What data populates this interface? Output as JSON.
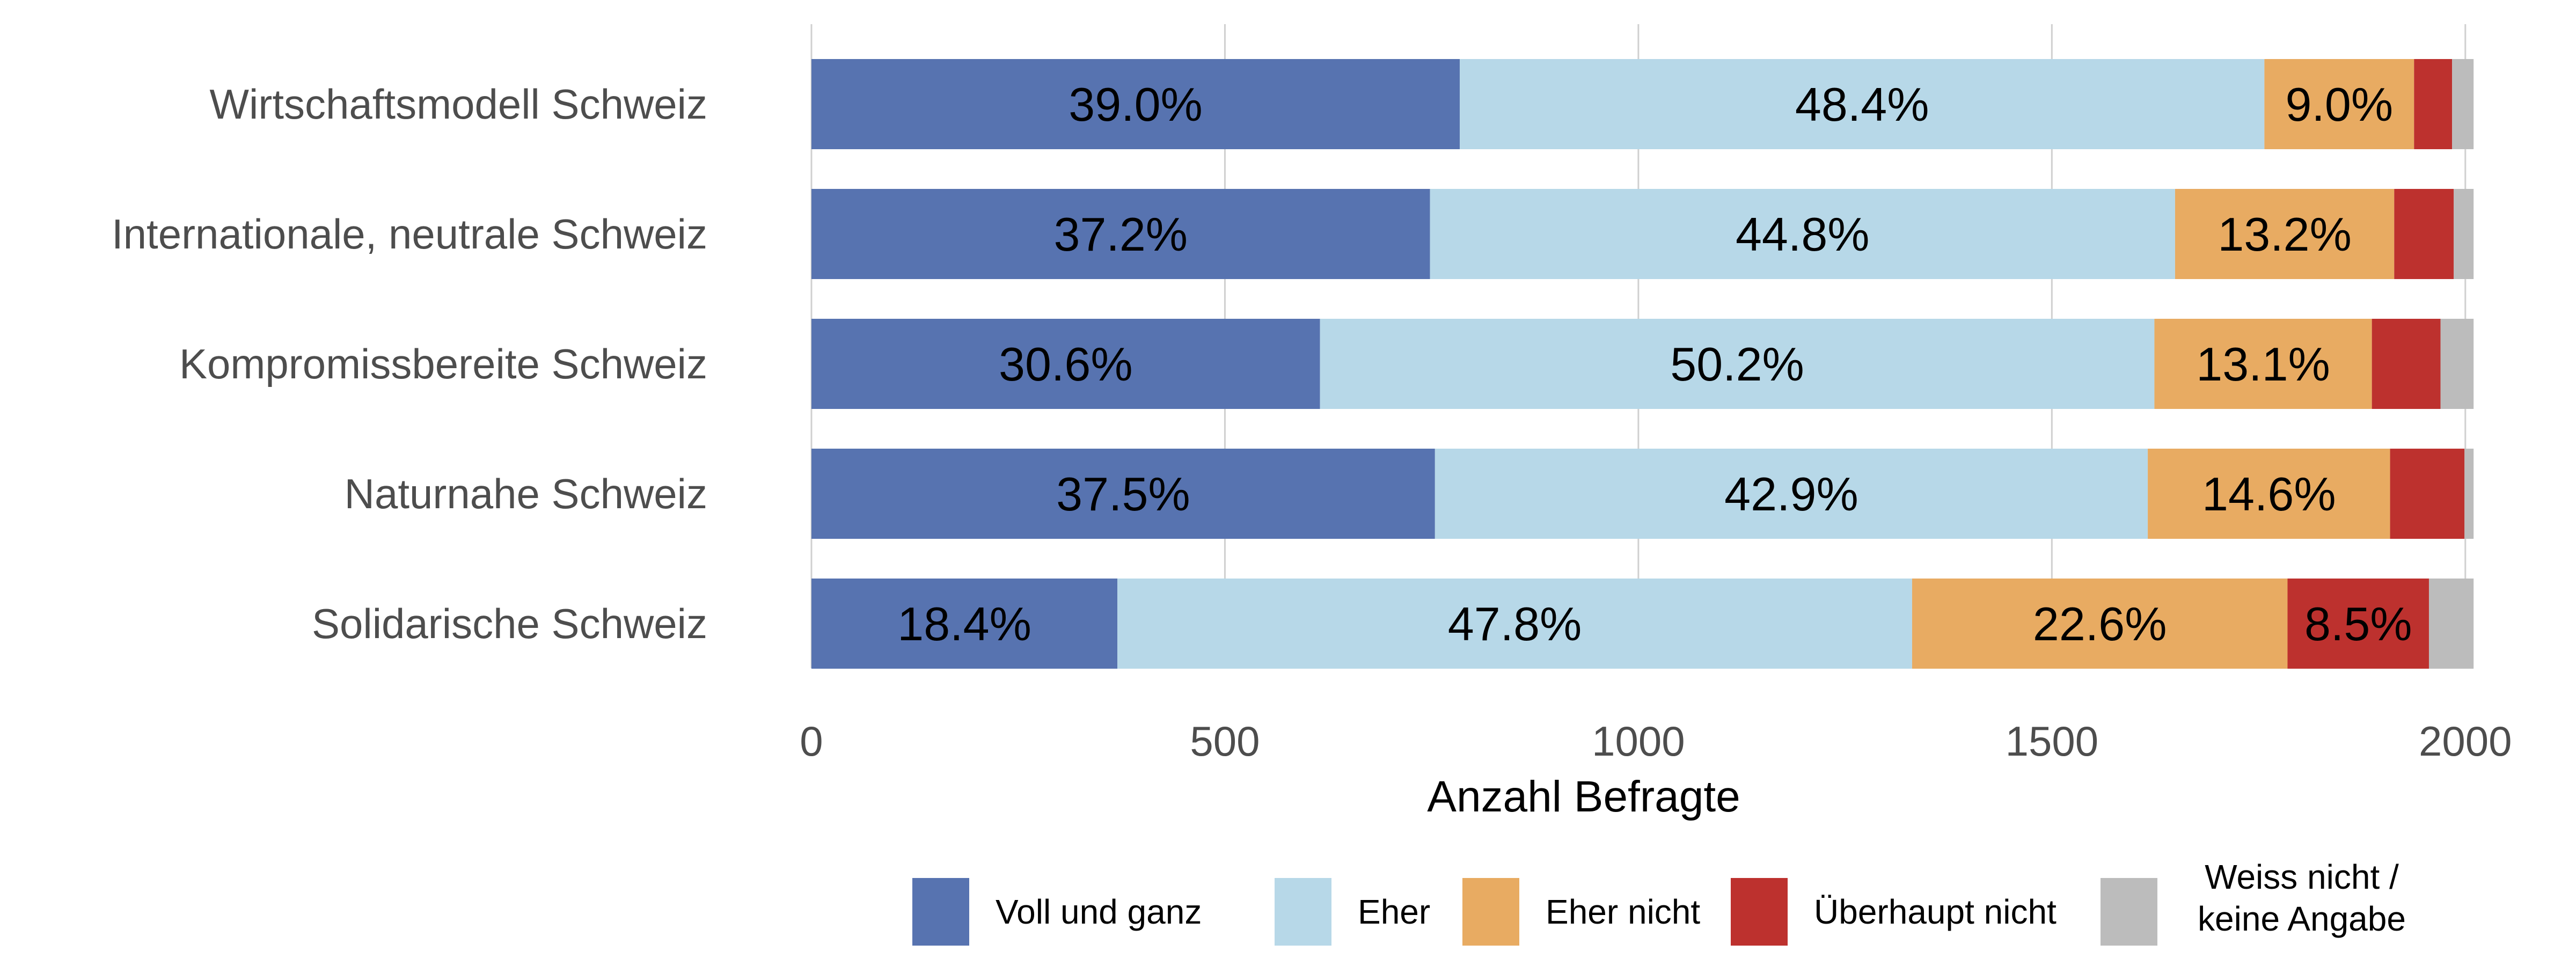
{
  "chart_data": {
    "type": "bar",
    "orientation": "horizontal",
    "stacked": true,
    "categories": [
      "Wirtschaftsmodell Schweiz",
      "Internationale, neutrale Schweiz",
      "Kompromissbereite Schweiz",
      "Naturnahe Schweiz",
      "Solidarische Schweiz"
    ],
    "series": [
      {
        "name": "Voll und ganz",
        "color": "#5773b0",
        "values": [
          784,
          748,
          615,
          754,
          370
        ],
        "labels": [
          "39.0%",
          "37.2%",
          "30.6%",
          "37.5%",
          "18.4%"
        ]
      },
      {
        "name": "Eher",
        "color": "#b7d8e8",
        "values": [
          973,
          901,
          1009,
          862,
          961
        ],
        "labels": [
          "48.4%",
          "44.8%",
          "50.2%",
          "42.9%",
          "47.8%"
        ]
      },
      {
        "name": "Eher nicht",
        "color": "#e8ab62",
        "values": [
          181,
          265,
          263,
          293,
          454
        ],
        "labels": [
          "9.0%",
          "13.2%",
          "13.1%",
          "14.6%",
          "22.6%"
        ]
      },
      {
        "name": "Überhaupt nicht",
        "color": "#bd312e",
        "values": [
          46,
          72,
          83,
          90,
          171
        ],
        "labels": [
          "",
          "",
          "",
          "",
          "8.5%"
        ]
      },
      {
        "name": "Weiss nicht /\nkeine Angabe",
        "color": "#bcbcbc",
        "values": [
          26,
          24,
          40,
          11,
          54
        ],
        "labels": [
          "",
          "",
          "",
          "",
          ""
        ]
      }
    ],
    "x_ticks": [
      0,
      500,
      1000,
      1500,
      2000
    ],
    "xlim": [
      0,
      2030
    ],
    "xlabel": "Anzahl Befragte",
    "ylabel": "",
    "title": "",
    "grid": "vertical",
    "legend_position": "bottom"
  }
}
